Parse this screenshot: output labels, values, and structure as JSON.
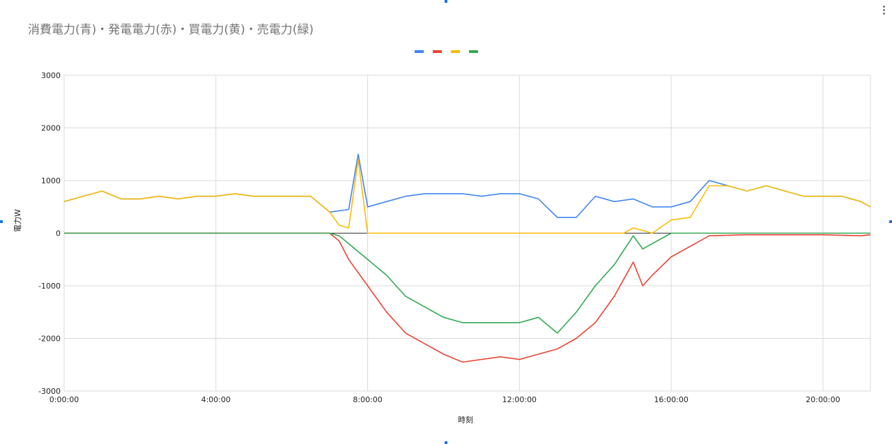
{
  "chart_data": {
    "type": "line",
    "title": "消費電力(青)・発電電力(赤)・買電力(黄)・売電力(緑)",
    "xlabel": "時刻",
    "ylabel": "電力W",
    "ylim": [
      -3000,
      3000
    ],
    "yticks": [
      3000,
      2000,
      1000,
      0,
      -1000,
      -2000,
      -3000
    ],
    "xlim": [
      "0:00:00",
      "21:15:00"
    ],
    "xticks": [
      "0:00:00",
      "4:00:00",
      "8:00:00",
      "12:00:00",
      "16:00:00",
      "20:00:00"
    ],
    "grid": true,
    "legend_position": "top-center",
    "series": [
      {
        "color": "#4285f4",
        "x": [
          "0:00:00",
          "0:30:00",
          "1:00:00",
          "1:30:00",
          "2:00:00",
          "2:30:00",
          "3:00:00",
          "3:30:00",
          "4:00:00",
          "4:30:00",
          "5:00:00",
          "5:30:00",
          "6:00:00",
          "6:30:00",
          "7:00:00",
          "7:30:00",
          "7:45:00",
          "8:00:00",
          "8:30:00",
          "9:00:00",
          "9:30:00",
          "10:00:00",
          "10:30:00",
          "11:00:00",
          "11:30:00",
          "12:00:00",
          "12:30:00",
          "13:00:00",
          "13:30:00",
          "14:00:00",
          "14:30:00",
          "15:00:00",
          "15:30:00",
          "16:00:00",
          "16:30:00",
          "17:00:00",
          "17:30:00",
          "18:00:00",
          "18:30:00",
          "19:00:00",
          "19:30:00",
          "20:00:00",
          "20:30:00",
          "21:00:00",
          "21:15:00"
        ],
        "y": [
          600,
          700,
          800,
          650,
          650,
          700,
          650,
          700,
          700,
          750,
          700,
          700,
          700,
          700,
          400,
          450,
          1500,
          500,
          600,
          700,
          750,
          750,
          750,
          700,
          750,
          750,
          650,
          300,
          300,
          700,
          600,
          650,
          500,
          500,
          600,
          1000,
          900,
          800,
          900,
          800,
          700,
          700,
          700,
          600,
          500
        ]
      },
      {
        "color": "#ea4335",
        "x": [
          "0:00:00",
          "4:00:00",
          "7:00:00",
          "7:15:00",
          "7:30:00",
          "8:00:00",
          "8:30:00",
          "9:00:00",
          "9:30:00",
          "10:00:00",
          "10:30:00",
          "11:00:00",
          "11:30:00",
          "12:00:00",
          "12:30:00",
          "13:00:00",
          "13:30:00",
          "14:00:00",
          "14:30:00",
          "15:00:00",
          "15:15:00",
          "15:30:00",
          "16:00:00",
          "16:30:00",
          "17:00:00",
          "18:00:00",
          "19:00:00",
          "20:00:00",
          "21:00:00",
          "21:15:00"
        ],
        "y": [
          0,
          0,
          0,
          -150,
          -500,
          -1000,
          -1500,
          -1900,
          -2100,
          -2300,
          -2450,
          -2400,
          -2350,
          -2400,
          -2300,
          -2200,
          -2000,
          -1700,
          -1200,
          -550,
          -1000,
          -800,
          -450,
          -250,
          -50,
          -30,
          -30,
          -30,
          -50,
          -30
        ]
      },
      {
        "color": "#fbbc04",
        "x": [
          "0:00:00",
          "0:30:00",
          "1:00:00",
          "1:30:00",
          "2:00:00",
          "2:30:00",
          "3:00:00",
          "3:30:00",
          "4:00:00",
          "4:30:00",
          "5:00:00",
          "5:30:00",
          "6:00:00",
          "6:30:00",
          "7:00:00",
          "7:15:00",
          "7:30:00",
          "7:45:00",
          "8:00:00",
          "12:00:00",
          "14:45:00",
          "15:00:00",
          "15:30:00",
          "16:00:00",
          "16:30:00",
          "17:00:00",
          "17:30:00",
          "18:00:00",
          "18:30:00",
          "19:00:00",
          "19:30:00",
          "20:00:00",
          "20:30:00",
          "21:00:00",
          "21:15:00"
        ],
        "y": [
          600,
          700,
          800,
          650,
          650,
          700,
          650,
          700,
          700,
          750,
          700,
          700,
          700,
          700,
          400,
          150,
          100,
          1400,
          0,
          0,
          0,
          100,
          0,
          250,
          300,
          900,
          900,
          800,
          900,
          800,
          700,
          700,
          700,
          600,
          500
        ]
      },
      {
        "color": "#34a853",
        "x": [
          "0:00:00",
          "4:00:00",
          "7:00:00",
          "7:15:00",
          "7:30:00",
          "8:00:00",
          "8:30:00",
          "9:00:00",
          "9:30:00",
          "10:00:00",
          "10:30:00",
          "11:00:00",
          "11:30:00",
          "12:00:00",
          "12:30:00",
          "13:00:00",
          "13:30:00",
          "14:00:00",
          "14:30:00",
          "15:00:00",
          "15:15:00",
          "15:30:00",
          "16:00:00",
          "18:00:00",
          "21:15:00"
        ],
        "y": [
          0,
          0,
          0,
          -50,
          -200,
          -500,
          -800,
          -1200,
          -1400,
          -1600,
          -1700,
          -1700,
          -1700,
          -1700,
          -1600,
          -1900,
          -1500,
          -1000,
          -600,
          -50,
          -300,
          -200,
          0,
          0,
          0
        ]
      }
    ]
  }
}
